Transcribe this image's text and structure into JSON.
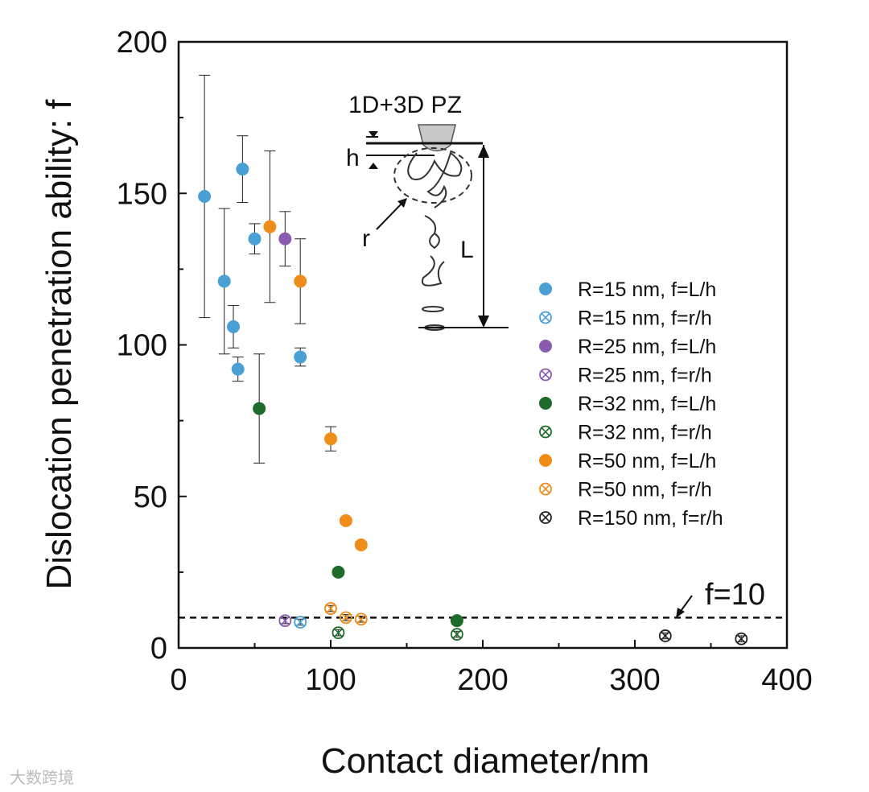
{
  "chart_data": {
    "type": "scatter",
    "xlabel": "Contact diameter/nm",
    "ylabel": "Dislocation penetration ability: f",
    "xlim": [
      0,
      400
    ],
    "ylim": [
      0,
      200
    ],
    "xticks": [
      0,
      100,
      200,
      300,
      400
    ],
    "yticks": [
      0,
      50,
      100,
      150,
      200
    ],
    "legend_position": "right-middle",
    "reference_line": {
      "y": 10,
      "label": "f=10",
      "style": "dashed"
    },
    "series": [
      {
        "name": "R=15 nm, f=L/h",
        "color": "#4a9fd4",
        "marker": "filled",
        "points": [
          {
            "x": 17,
            "y": 149,
            "err": 40
          },
          {
            "x": 30,
            "y": 121,
            "err": 24
          },
          {
            "x": 36,
            "y": 106,
            "err": 7
          },
          {
            "x": 39,
            "y": 92,
            "err": 4
          },
          {
            "x": 42,
            "y": 158,
            "err": 11
          },
          {
            "x": 50,
            "y": 135,
            "err": 5
          },
          {
            "x": 80,
            "y": 96,
            "err": 3
          }
        ]
      },
      {
        "name": "R=15 nm, f=r/h",
        "color": "#4a9fd4",
        "marker": "crossed",
        "points": [
          {
            "x": 80,
            "y": 8.5,
            "err": 1
          }
        ]
      },
      {
        "name": "R=25 nm, f=L/h",
        "color": "#8a5cb0",
        "marker": "filled",
        "points": [
          {
            "x": 70,
            "y": 135,
            "err": 9
          }
        ]
      },
      {
        "name": "R=25 nm, f=r/h",
        "color": "#8a5cb0",
        "marker": "crossed",
        "points": [
          {
            "x": 70,
            "y": 9,
            "err": 1
          }
        ]
      },
      {
        "name": "R=32 nm, f=L/h",
        "color": "#1f6b2c",
        "marker": "filled",
        "points": [
          {
            "x": 53,
            "y": 79,
            "err": 18
          },
          {
            "x": 105,
            "y": 25,
            "err": 1
          },
          {
            "x": 183,
            "y": 9,
            "err": 1
          }
        ]
      },
      {
        "name": "R=32 nm, f=r/h",
        "color": "#1f6b2c",
        "marker": "crossed",
        "points": [
          {
            "x": 105,
            "y": 5,
            "err": 1
          },
          {
            "x": 183,
            "y": 4.5,
            "err": 1
          }
        ]
      },
      {
        "name": "R=50 nm, f=L/h",
        "color": "#f08c1a",
        "marker": "filled",
        "points": [
          {
            "x": 60,
            "y": 139,
            "err": 25
          },
          {
            "x": 80,
            "y": 121,
            "err": 14
          },
          {
            "x": 100,
            "y": 69,
            "err": 4
          },
          {
            "x": 110,
            "y": 42,
            "err": 1
          },
          {
            "x": 120,
            "y": 34,
            "err": 1
          }
        ]
      },
      {
        "name": "R=50 nm, f=r/h",
        "color": "#f08c1a",
        "marker": "crossed",
        "points": [
          {
            "x": 100,
            "y": 13,
            "err": 1
          },
          {
            "x": 110,
            "y": 10,
            "err": 1
          },
          {
            "x": 120,
            "y": 9.5,
            "err": 1
          }
        ]
      },
      {
        "name": "R=150 nm, f=r/h",
        "color": "#222222",
        "marker": "crossed",
        "points": [
          {
            "x": 320,
            "y": 4,
            "err": 1
          },
          {
            "x": 370,
            "y": 3,
            "err": 1
          }
        ]
      }
    ],
    "inset": {
      "title": "1D+3D PZ",
      "labels": {
        "h": "h",
        "r": "r",
        "L": "L"
      }
    }
  },
  "watermark": "大数跨境"
}
